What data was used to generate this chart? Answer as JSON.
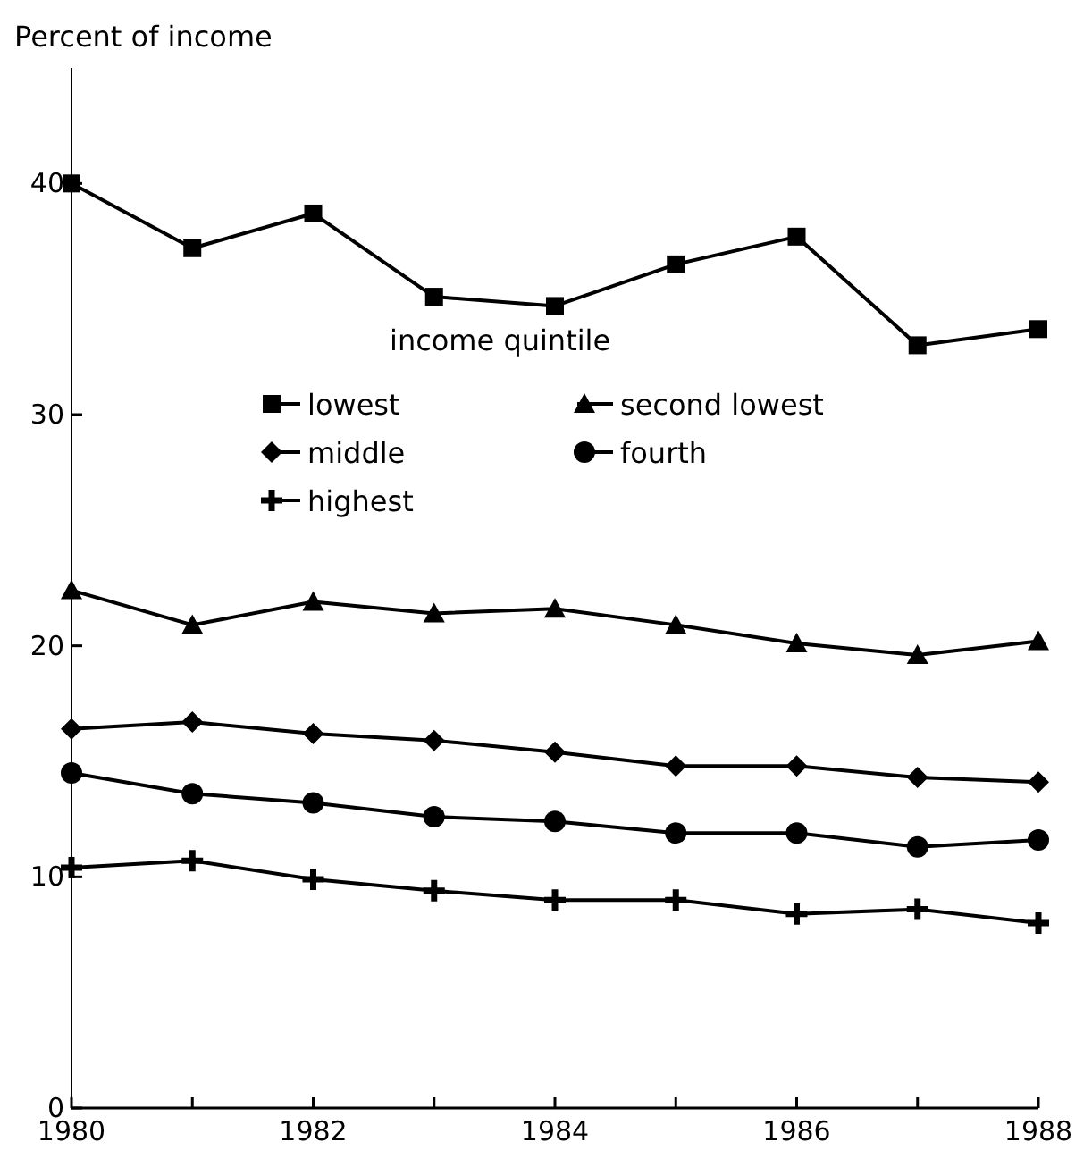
{
  "chart_data": {
    "type": "line",
    "ylabel": "Percent of income",
    "legend_title": "income quintile",
    "legend": "top right",
    "x": [
      1980,
      1981,
      1982,
      1983,
      1984,
      1985,
      1986,
      1987,
      1988
    ],
    "xlim": [
      1980,
      1988
    ],
    "xticks": [
      1980,
      {
        "value": 1981,
        "label": null
      },
      1982,
      {
        "value": 1983,
        "label": null
      },
      1984,
      {
        "value": 1985,
        "label": null
      },
      1986,
      {
        "value": 1987,
        "label": null
      },
      1988
    ],
    "ylim": [
      0,
      45
    ],
    "yticks": [
      0,
      10,
      20,
      30,
      40
    ],
    "grid": false,
    "line_style": "solid",
    "series": [
      {
        "name": "lowest",
        "color": "#000000",
        "marker": "square",
        "values": [
          40.0,
          37.2,
          38.7,
          35.1,
          34.7,
          36.5,
          37.7,
          33.0,
          33.7
        ]
      },
      {
        "name": "second lowest",
        "color": "#000000",
        "marker": "triangle",
        "values": [
          22.4,
          20.9,
          21.9,
          21.4,
          21.6,
          20.9,
          20.1,
          19.6,
          20.2
        ]
      },
      {
        "name": "middle",
        "color": "#000000",
        "marker": "diamond",
        "values": [
          16.4,
          16.7,
          16.2,
          15.9,
          15.4,
          14.8,
          14.8,
          14.3,
          14.1
        ]
      },
      {
        "name": "fourth",
        "color": "#000000",
        "marker": "circle",
        "values": [
          14.5,
          13.6,
          13.2,
          12.6,
          12.4,
          11.9,
          11.9,
          11.3,
          11.6
        ]
      },
      {
        "name": "highest",
        "color": "#000000",
        "marker": "cross",
        "values": [
          10.4,
          10.7,
          9.9,
          9.4,
          9.0,
          9.0,
          8.4,
          8.6,
          8.0
        ]
      }
    ]
  }
}
